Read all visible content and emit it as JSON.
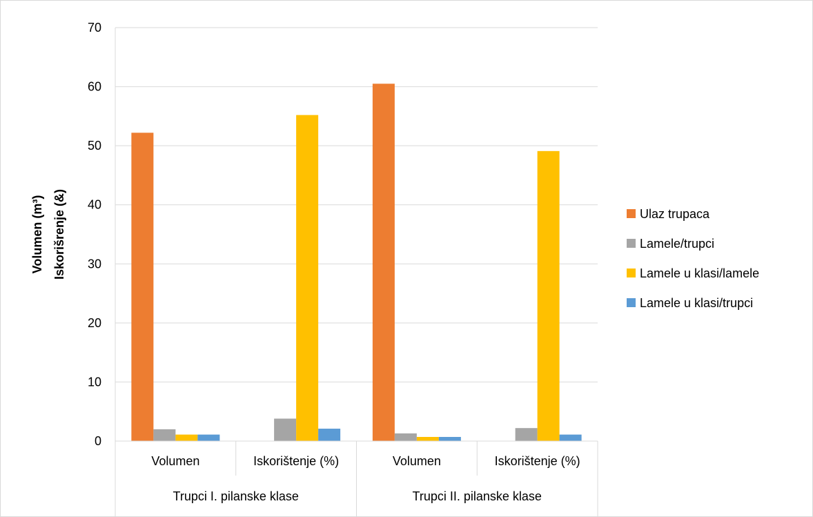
{
  "chart_data": {
    "type": "bar",
    "ylabel_lines": [
      "Volumen (m³)",
      "Iskorišrenje (&)"
    ],
    "ylim": [
      0,
      70
    ],
    "yticks": [
      0,
      10,
      20,
      30,
      40,
      50,
      60,
      70
    ],
    "grid": true,
    "legend_position": "right",
    "groups": [
      "Trupci I. pilanske klase",
      "Trupci II. pilanske klase"
    ],
    "categories": [
      "Volumen",
      "Iskorištenje (%)",
      "Volumen",
      "Iskorištenje (%)"
    ],
    "series": [
      {
        "name": "Ulaz trupaca",
        "color": "#ED7D31",
        "values": [
          52.2,
          0,
          60.5,
          0
        ]
      },
      {
        "name": "Lamele/trupci",
        "color": "#A5A5A5",
        "values": [
          2.0,
          3.8,
          1.3,
          2.2
        ]
      },
      {
        "name": "Lamele u klasi/lamele",
        "color": "#FFC000",
        "values": [
          1.1,
          55.2,
          0.7,
          49.1
        ]
      },
      {
        "name": "Lamele u klasi/trupci",
        "color": "#5B9BD5",
        "values": [
          1.1,
          2.1,
          0.7,
          1.1
        ]
      }
    ]
  }
}
